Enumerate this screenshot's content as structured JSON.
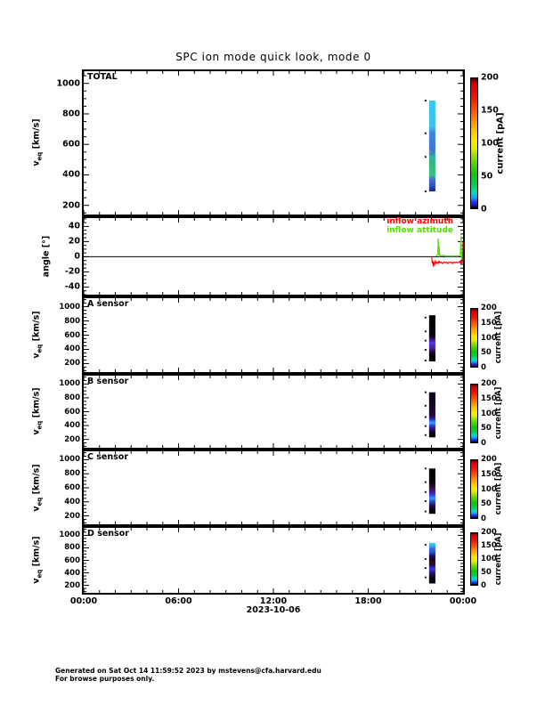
{
  "title": "SPC ion mode quick look, mode 0",
  "footer": {
    "line1": "Generated on Sat Oct 14 11:59:52 2023 by mstevens@cfa.harvard.edu",
    "line2": "For browse purposes only."
  },
  "axis_labels": {
    "v_pre": "v",
    "v_sub": "eq",
    "v_unit": " [km/s]",
    "angle": "angle [°]"
  },
  "x_axis": {
    "date_label": "2023-10-06",
    "tick_hours": [
      0,
      6,
      12,
      18,
      24
    ],
    "tick_labels": [
      "00:00",
      "06:00",
      "12:00",
      "18:00",
      "00:00"
    ],
    "minor_step_hours": 1,
    "range_hours": [
      0,
      24
    ]
  },
  "colorbar": {
    "label": "current [pA]",
    "ticks": [
      200,
      150,
      100,
      50,
      0
    ],
    "range": [
      0,
      200
    ],
    "gradient_bottom_to_top": [
      "#000000 0%",
      "#1b1bb0 2.5%",
      "#2b2bff 5%",
      "#00a8ff 8%",
      "#00e0c0 12%",
      "#00d24a 18%",
      "#10c410 26%",
      "#56d200 34%",
      "#a0e200 41%",
      "#e0f000 46%",
      "#ffe800 52%",
      "#ffc400 59%",
      "#ff9800 66%",
      "#ff6a00 72%",
      "#ff3a00 79%",
      "#f51000 86%",
      "#e00000 94%",
      "#b80000 97%",
      "#400000 100%"
    ]
  },
  "chart_data": [
    {
      "id": "total",
      "type": "heatmap",
      "label": "TOTAL",
      "ylabel": "veq [km/s]",
      "y_range": [
        140,
        1080
      ],
      "y_ticks": [
        200,
        400,
        600,
        800,
        1000
      ],
      "y_minor": 50,
      "strip": {
        "t_center": 22.05,
        "t_width": 0.4,
        "v_top": 887,
        "v_bottom": 292,
        "stops": [
          [
            "#38c8ee",
            0
          ],
          [
            "#3cc4ea",
            0.28
          ],
          [
            "#3e84da",
            0.36
          ],
          [
            "#3a78d2",
            0.56
          ],
          [
            "#2fb8a8",
            0.63
          ],
          [
            "#2eb877",
            0.68
          ],
          [
            "#38c080",
            0.82
          ],
          [
            "#3f70d8",
            0.87
          ],
          [
            "#2e50bb",
            0.94
          ],
          [
            "#16247c",
            1
          ]
        ],
        "speck_fracs": [
          0,
          0.36,
          0.62,
          1
        ],
        "hot_specks": [
          {
            "frac": 0.55,
            "color": "#d97b2f"
          }
        ]
      }
    },
    {
      "id": "angle",
      "type": "line",
      "label": "",
      "ylabel": "angle [°]",
      "y_range": [
        -50,
        51
      ],
      "y_ticks": [
        -40,
        -20,
        0,
        20,
        40
      ],
      "y_minor": 5,
      "zero_line": true,
      "legend": [
        {
          "label": "inflow azimuth",
          "color": "#ff0000"
        },
        {
          "label": "inflow attitude",
          "color": "#55e000"
        }
      ],
      "series": [
        {
          "name": "inflow attitude",
          "color": "#55e000",
          "points": [
            [
              22.3,
              1
            ],
            [
              22.36,
              2
            ],
            [
              22.4,
              5
            ],
            [
              22.43,
              24
            ],
            [
              22.46,
              2
            ],
            [
              22.49,
              14
            ],
            [
              22.52,
              1
            ],
            [
              22.58,
              2
            ],
            [
              22.65,
              1
            ],
            [
              22.75,
              2
            ],
            [
              22.9,
              1
            ],
            [
              23.1,
              1
            ],
            [
              23.3,
              1
            ],
            [
              23.55,
              1
            ],
            [
              23.75,
              1
            ],
            [
              23.82,
              2
            ],
            [
              23.87,
              27
            ],
            [
              23.91,
              -4
            ],
            [
              23.95,
              3
            ],
            [
              24.0,
              -5
            ]
          ]
        },
        {
          "name": "inflow azimuth",
          "color": "#ff0000",
          "points": [
            [
              22.02,
              -1
            ],
            [
              22.05,
              -9
            ],
            [
              22.08,
              -5
            ],
            [
              22.12,
              -13
            ],
            [
              22.16,
              -7
            ],
            [
              22.2,
              -10
            ],
            [
              22.25,
              -6
            ],
            [
              22.3,
              -9
            ],
            [
              22.35,
              -7
            ],
            [
              22.42,
              -9
            ],
            [
              22.48,
              -6
            ],
            [
              22.55,
              -8
            ],
            [
              22.62,
              -7
            ],
            [
              22.7,
              -9
            ],
            [
              22.78,
              -7
            ],
            [
              22.86,
              -8
            ],
            [
              22.94,
              -7
            ],
            [
              23.02,
              -9
            ],
            [
              23.1,
              -7
            ],
            [
              23.18,
              -8
            ],
            [
              23.26,
              -7
            ],
            [
              23.34,
              -9
            ],
            [
              23.42,
              -7
            ],
            [
              23.5,
              -8
            ],
            [
              23.58,
              -7
            ],
            [
              23.66,
              -8
            ],
            [
              23.74,
              -7
            ],
            [
              23.8,
              -6
            ],
            [
              23.85,
              -9
            ],
            [
              23.9,
              -5
            ],
            [
              23.94,
              -8
            ],
            [
              23.98,
              -6
            ],
            [
              24.0,
              20
            ]
          ]
        }
      ]
    },
    {
      "id": "a_sensor",
      "type": "heatmap",
      "label": "A sensor",
      "ylabel": "veq [km/s]",
      "y_range": [
        80,
        1120
      ],
      "y_ticks": [
        200,
        400,
        600,
        800,
        1000
      ],
      "y_minor": 50,
      "strip": {
        "t_center": 22.05,
        "t_width": 0.4,
        "v_top": 880,
        "v_bottom": 230,
        "stops": [
          [
            "#000000",
            0
          ],
          [
            "#050208",
            0.4
          ],
          [
            "#1c0a33",
            0.48
          ],
          [
            "#4a22b0",
            0.56
          ],
          [
            "#5b35e8",
            0.6
          ],
          [
            "#3c2fd8",
            0.64
          ],
          [
            "#55249a",
            0.7
          ],
          [
            "#2a1045",
            0.78
          ],
          [
            "#000000",
            0.86
          ],
          [
            "#000000",
            1
          ]
        ],
        "speck_fracs": [
          0.05,
          0.35,
          0.55,
          0.75,
          0.98
        ]
      }
    },
    {
      "id": "b_sensor",
      "type": "heatmap",
      "label": "B sensor",
      "ylabel": "veq [km/s]",
      "y_range": [
        80,
        1120
      ],
      "y_ticks": [
        200,
        400,
        600,
        800,
        1000
      ],
      "y_minor": 50,
      "strip": {
        "t_center": 22.05,
        "t_width": 0.4,
        "v_top": 880,
        "v_bottom": 230,
        "stops": [
          [
            "#14061f",
            0
          ],
          [
            "#0a0312",
            0.1
          ],
          [
            "#180826",
            0.3
          ],
          [
            "#1e0a33",
            0.5
          ],
          [
            "#2b1a8e",
            0.58
          ],
          [
            "#2e6df0",
            0.64
          ],
          [
            "#38a8f8",
            0.68
          ],
          [
            "#2c55e0",
            0.72
          ],
          [
            "#33219a",
            0.78
          ],
          [
            "#120522",
            0.88
          ],
          [
            "#000000",
            1
          ]
        ],
        "speck_fracs": [
          0.0,
          0.3,
          0.55,
          0.75,
          0.95
        ]
      }
    },
    {
      "id": "c_sensor",
      "type": "heatmap",
      "label": "C sensor",
      "ylabel": "veq [km/s]",
      "y_range": [
        80,
        1120
      ],
      "y_ticks": [
        200,
        400,
        600,
        800,
        1000
      ],
      "y_minor": 50,
      "strip": {
        "t_center": 22.05,
        "t_width": 0.4,
        "v_top": 875,
        "v_bottom": 230,
        "stops": [
          [
            "#000000",
            0
          ],
          [
            "#0a0410",
            0.3
          ],
          [
            "#2e0f28",
            0.4
          ],
          [
            "#3d1670",
            0.48
          ],
          [
            "#4526c8",
            0.56
          ],
          [
            "#2e6df0",
            0.62
          ],
          [
            "#35a0f0",
            0.66
          ],
          [
            "#2c50d8",
            0.72
          ],
          [
            "#2a1566",
            0.8
          ],
          [
            "#0a0312",
            0.9
          ],
          [
            "#000000",
            1
          ]
        ],
        "speck_fracs": [
          0.0,
          0.3,
          0.52,
          0.72,
          0.95
        ]
      }
    },
    {
      "id": "d_sensor",
      "type": "heatmap",
      "label": "D sensor",
      "ylabel": "veq [km/s]",
      "y_range": [
        80,
        1120
      ],
      "y_ticks": [
        200,
        400,
        600,
        800,
        1000
      ],
      "y_minor": 50,
      "x_tick_labels": true,
      "strip": {
        "t_center": 22.05,
        "t_width": 0.4,
        "v_top": 880,
        "v_bottom": 230,
        "stops": [
          [
            "#3fd0f5",
            0
          ],
          [
            "#38b8f0",
            0.06
          ],
          [
            "#2f72e0",
            0.14
          ],
          [
            "#2b50c8",
            0.24
          ],
          [
            "#1c1060",
            0.32
          ],
          [
            "#12061f",
            0.42
          ],
          [
            "#380f1c",
            0.5
          ],
          [
            "#1c0a33",
            0.54
          ],
          [
            "#3228b8",
            0.6
          ],
          [
            "#3f35d8",
            0.66
          ],
          [
            "#2a1a80",
            0.72
          ],
          [
            "#180a2e",
            0.82
          ],
          [
            "#0a0312",
            0.92
          ],
          [
            "#000000",
            1
          ]
        ],
        "speck_fracs": [
          0.05,
          0.4,
          0.62,
          0.85
        ]
      }
    }
  ]
}
